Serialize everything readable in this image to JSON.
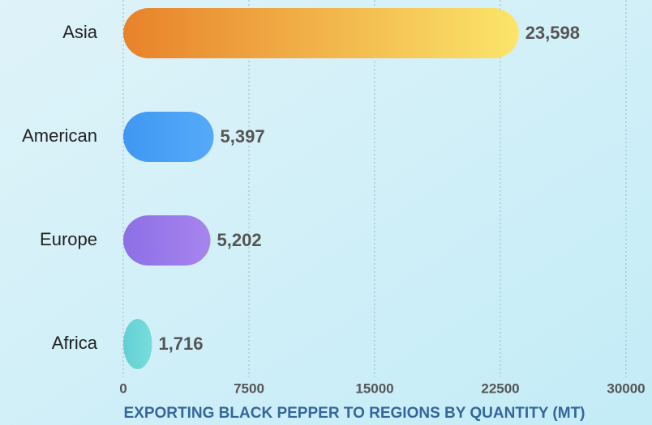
{
  "chart_data": {
    "type": "barh",
    "title": "EXPORTING BLACK PEPPER TO REGIONS BY QUANTITY (MT)",
    "categories": [
      "Asia",
      "American",
      "Europe",
      "Africa"
    ],
    "values": [
      23598,
      5397,
      5202,
      1716
    ],
    "value_labels": [
      "23,598",
      "5,397",
      "5,202",
      "1,716"
    ],
    "colors": [
      [
        "#e8822a",
        "#fbe56a"
      ],
      [
        "#3f97f2",
        "#55aaf8"
      ],
      [
        "#8d6fe6",
        "#a785ee"
      ],
      [
        "#63d0d3",
        "#78dcdc"
      ]
    ],
    "xlim": [
      0,
      30000
    ],
    "xticks": [
      0,
      7500,
      15000,
      22500,
      30000
    ],
    "grid": true
  }
}
